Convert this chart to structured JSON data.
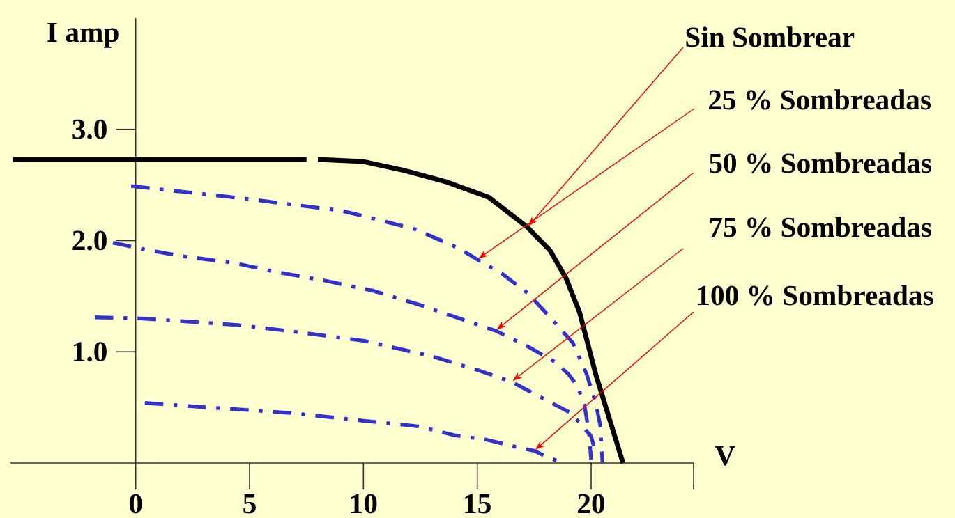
{
  "chart_data": {
    "type": "line",
    "xlabel": "V",
    "ylabel": "I amp",
    "xlim": [
      -5.5,
      24.5
    ],
    "ylim": [
      0,
      4
    ],
    "xticks": [
      0,
      5,
      10,
      15,
      20
    ],
    "yticks": [
      {
        "value": 1,
        "label": "1.0"
      },
      {
        "value": 2,
        "label": "2.0"
      },
      {
        "value": 3,
        "label": "3.0"
      }
    ],
    "marker": "none",
    "series": [
      {
        "name": "Sin Sombrear",
        "color": "#000000",
        "line_style": "solid",
        "x": [
          -5.4,
          7.5,
          7.7,
          8.0,
          10.0,
          11.8,
          13.6,
          15.5,
          17.2,
          18.2,
          18.9,
          19.5,
          20.2,
          21.4
        ],
        "values": [
          2.73,
          2.73,
          null,
          2.73,
          2.71,
          2.63,
          2.53,
          2.39,
          2.12,
          1.91,
          1.66,
          1.35,
          0.8,
          0
        ]
      },
      {
        "name": "25 % Sombreadas",
        "color": "#3333cc",
        "line_style": "dashdot",
        "x": [
          -0.2,
          2.0,
          4.7,
          7.0,
          9.0,
          10.2,
          12.3,
          14.2,
          15.0,
          16.1,
          17.2,
          18.2,
          19.2,
          19.8,
          20.2,
          20.4,
          20.5
        ],
        "values": [
          2.49,
          2.44,
          2.38,
          2.32,
          2.27,
          2.21,
          2.1,
          1.93,
          1.83,
          1.7,
          1.53,
          1.31,
          1.08,
          0.8,
          0.54,
          0.34,
          0
        ]
      },
      {
        "name": "50 % Sombreadas",
        "color": "#3333cc",
        "line_style": "dashdot",
        "x": [
          -1.0,
          0.4,
          2.0,
          4.3,
          6.1,
          8.3,
          10.4,
          12.5,
          14.5,
          15.8,
          17.2,
          18.4,
          19.0,
          19.4,
          19.7,
          19.9,
          20.0
        ],
        "values": [
          1.98,
          1.92,
          1.86,
          1.8,
          1.72,
          1.64,
          1.55,
          1.42,
          1.28,
          1.19,
          1.05,
          0.91,
          0.8,
          0.69,
          0.53,
          0.28,
          0.03
        ]
      },
      {
        "name": "75 % Sombreadas",
        "color": "#3333cc",
        "line_style": "dashdot",
        "x": [
          -1.8,
          0.2,
          2.4,
          4.5,
          6.6,
          10.0,
          13.0,
          15.1,
          16.5,
          17.8,
          19.1,
          19.5,
          20.0,
          20.2
        ],
        "values": [
          1.31,
          1.3,
          1.27,
          1.24,
          1.19,
          1.1,
          0.96,
          0.83,
          0.73,
          0.59,
          0.45,
          0.36,
          0.24,
          0.09
        ]
      },
      {
        "name": "100 % Sombreadas",
        "color": "#3333cc",
        "line_style": "dashdot",
        "x": [
          0.4,
          2.5,
          4.7,
          6.8,
          10.0,
          12.4,
          14.0,
          15.4,
          16.8,
          17.5,
          18.2,
          18.9
        ],
        "values": [
          0.54,
          0.51,
          0.48,
          0.45,
          0.38,
          0.33,
          0.25,
          0.21,
          0.14,
          0.11,
          0.04,
          0
        ]
      }
    ]
  }
}
